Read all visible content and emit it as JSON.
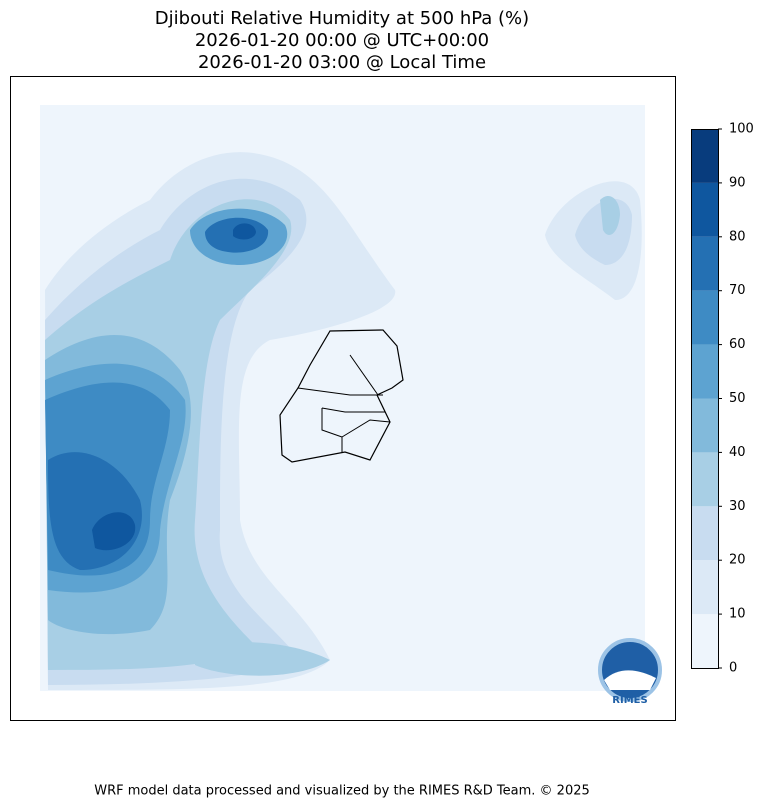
{
  "header": {
    "title_lines": [
      "Djibouti Relative Humidity at 500 hPa (%)",
      "2026-01-20 00:00 @ UTC+00:00",
      "2026-01-20 03:00 @ Local Time"
    ]
  },
  "colorbar": {
    "ticks": [
      0,
      10,
      20,
      30,
      40,
      50,
      60,
      70,
      80,
      90,
      100
    ],
    "colors": [
      "#eef5fc",
      "#dce9f6",
      "#c8dcf0",
      "#a8cfe5",
      "#82badb",
      "#5da3d1",
      "#3e8bc4",
      "#2470b3",
      "#0f579f",
      "#083c7d"
    ]
  },
  "logo": {
    "text": "RIMES"
  },
  "footer": {
    "text": "WRF model data processed and visualized by the RIMES R&D Team. © 2025"
  }
}
